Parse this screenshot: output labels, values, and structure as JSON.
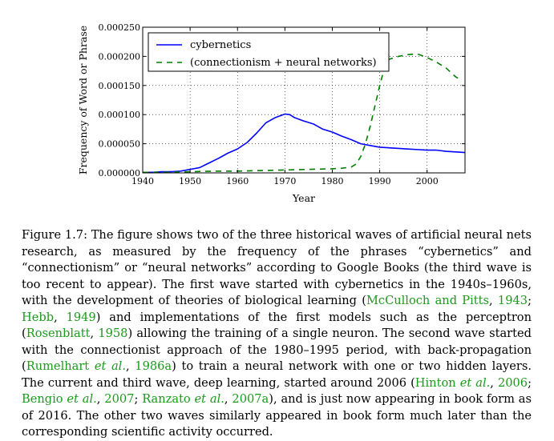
{
  "chart_data": {
    "type": "line",
    "title": "",
    "xlabel": "Year",
    "ylabel": "Frequency of Word or Phrase",
    "xlim": [
      1940,
      2008
    ],
    "ylim": [
      0,
      0.00025
    ],
    "x_ticks": [
      "1940",
      "1950",
      "1960",
      "1970",
      "1980",
      "1990",
      "2000"
    ],
    "x_tick_values": [
      1940,
      1950,
      1960,
      1970,
      1980,
      1990,
      2000
    ],
    "y_ticks": [
      "0.000000",
      "0.000050",
      "0.000100",
      "0.000150",
      "0.000200",
      "0.000250"
    ],
    "y_tick_values": [
      0,
      5e-05,
      0.0001,
      0.00015,
      0.0002,
      0.00025
    ],
    "grid": true,
    "legend_position": "top-left",
    "series": [
      {
        "name": "cybernetics",
        "color": "#0000ff",
        "style": "solid",
        "x": [
          1940,
          1942,
          1944,
          1946,
          1948,
          1950,
          1952,
          1954,
          1956,
          1958,
          1960,
          1962,
          1964,
          1966,
          1968,
          1970,
          1971,
          1972,
          1974,
          1976,
          1978,
          1980,
          1982,
          1984,
          1986,
          1988,
          1990,
          1992,
          1994,
          1996,
          1998,
          2000,
          2002,
          2004,
          2006,
          2008
        ],
        "y": [
          1e-06,
          1e-06,
          2e-06,
          2e-06,
          3e-06,
          6e-06,
          9e-06,
          1.7e-05,
          2.5e-05,
          3.4e-05,
          4.1e-05,
          5.2e-05,
          6.8e-05,
          8.6e-05,
          9.5e-05,
          0.000101,
          0.0001,
          9.5e-05,
          8.9e-05,
          8.4e-05,
          7.5e-05,
          7e-05,
          6.3e-05,
          5.7e-05,
          5e-05,
          4.7e-05,
          4.4e-05,
          4.3e-05,
          4.2e-05,
          4.1e-05,
          4e-05,
          3.9e-05,
          3.9e-05,
          3.7e-05,
          3.6e-05,
          3.5e-05
        ]
      },
      {
        "name": "(connectionism + neural networks)",
        "color": "#008000",
        "style": "dashed",
        "x": [
          1940,
          1945,
          1950,
          1955,
          1960,
          1965,
          1970,
          1975,
          1980,
          1982,
          1984,
          1985,
          1986,
          1987,
          1988,
          1989,
          1990,
          1991,
          1992,
          1994,
          1996,
          1998,
          2000,
          2002,
          2004,
          2006,
          2007
        ],
        "y": [
          1e-06,
          1e-06,
          2e-06,
          3e-06,
          3e-06,
          4e-06,
          5e-06,
          6e-06,
          7e-06,
          8e-06,
          1e-05,
          1.5e-05,
          2.8e-05,
          5e-05,
          8e-05,
          0.000115,
          0.00015,
          0.00018,
          0.000195,
          0.0002,
          0.000203,
          0.000204,
          0.000198,
          0.00019,
          0.00018,
          0.000165,
          0.00016
        ]
      }
    ]
  },
  "caption": {
    "segments": [
      {
        "text": "Figure 1.7: The figure shows two of the three historical waves of artificial neural nets research, as measured by the frequency of the phrases “cybernetics” and “connectionism” or “neural networks” according to Google Books (the third wave is too recent to appear). The first wave started with cybernetics in the 1940s–1960s, with the development of theories of biological learning (",
        "cite": false
      },
      {
        "text": "McCulloch and Pitts",
        "cite": true
      },
      {
        "text": ", ",
        "cite": false
      },
      {
        "text": "1943",
        "cite": true
      },
      {
        "text": "; ",
        "cite": false
      },
      {
        "text": "Hebb",
        "cite": true
      },
      {
        "text": ", ",
        "cite": false
      },
      {
        "text": "1949",
        "cite": true
      },
      {
        "text": ") and implementations of the first models such as the perceptron (",
        "cite": false
      },
      {
        "text": "Rosenblatt",
        "cite": true
      },
      {
        "text": ", ",
        "cite": false
      },
      {
        "text": "1958",
        "cite": true
      },
      {
        "text": ") allowing the training of a single neuron. The second wave started with the connectionist approach of the 1980–1995 period, with back-propagation (",
        "cite": false
      },
      {
        "text": "Rumelhart et al.",
        "cite": true,
        "italic_part": "et al."
      },
      {
        "text": ", ",
        "cite": false
      },
      {
        "text": "1986a",
        "cite": true
      },
      {
        "text": ") to train a neural network with one or two hidden layers. The current and third wave, deep learning, started around 2006 (",
        "cite": false
      },
      {
        "text": "Hinton et al.",
        "cite": true,
        "italic_part": "et al."
      },
      {
        "text": ", ",
        "cite": false
      },
      {
        "text": "2006",
        "cite": true
      },
      {
        "text": "; ",
        "cite": false
      },
      {
        "text": "Bengio et al.",
        "cite": true,
        "italic_part": "et al."
      },
      {
        "text": ", ",
        "cite": false
      },
      {
        "text": "2007",
        "cite": true
      },
      {
        "text": "; ",
        "cite": false
      },
      {
        "text": "Ranzato et al.",
        "cite": true,
        "italic_part": "et al."
      },
      {
        "text": ", ",
        "cite": false
      },
      {
        "text": "2007a",
        "cite": true
      },
      {
        "text": "), and is just now appearing in book form as of 2016. The other two waves similarly appeared in book form much later than the corresponding scientific activity occurred.",
        "cite": false
      }
    ]
  }
}
